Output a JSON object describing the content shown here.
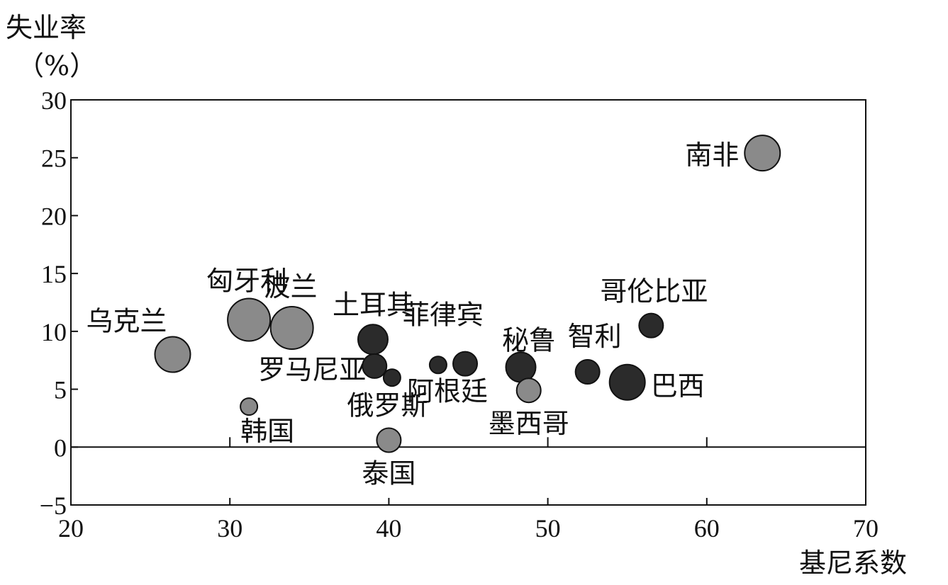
{
  "chart_data": {
    "type": "scatter",
    "ylabel": "失业率",
    "ylabel_unit": "（%）",
    "xlabel": "基尼系数",
    "xlim": [
      20,
      70
    ],
    "ylim": [
      -5,
      30
    ],
    "x_ticks": [
      "20",
      "30",
      "40",
      "50",
      "60",
      "70"
    ],
    "y_ticks": [
      "30",
      "25",
      "20",
      "15",
      "10",
      "5",
      "0",
      "−5"
    ],
    "grid": false,
    "colors": {
      "dark": "#2b2b2b",
      "light": "#8a8a8a",
      "outline": "#111111"
    },
    "points": [
      {
        "label": "南非",
        "x": 63.5,
        "y": 25.4,
        "size": "large",
        "shade": "light"
      },
      {
        "label": "乌克兰",
        "x": 26.4,
        "y": 8.0,
        "size": "large",
        "shade": "light"
      },
      {
        "label": "匈牙利",
        "x": 31.2,
        "y": 11.0,
        "size": "xlarge",
        "shade": "light"
      },
      {
        "label": "波兰",
        "x": 33.9,
        "y": 10.3,
        "size": "xlarge",
        "shade": "light"
      },
      {
        "label": "土耳其",
        "x": 39.0,
        "y": 9.3,
        "size": "medium",
        "shade": "dark"
      },
      {
        "label": "罗马尼亚",
        "x": 39.1,
        "y": 7.0,
        "size": "small",
        "shade": "dark"
      },
      {
        "label": "",
        "x": 40.2,
        "y": 6.0,
        "size": "xsmall",
        "shade": "dark"
      },
      {
        "label": "韩国",
        "x": 31.2,
        "y": 3.5,
        "size": "xsmall",
        "shade": "light"
      },
      {
        "label": "俄罗斯",
        "x": 40.0,
        "y": 0.6,
        "size": "small",
        "shade": "light"
      },
      {
        "label": "泰国",
        "x": 40.0,
        "y": 0.6,
        "size": "",
        "shade": ""
      },
      {
        "label": "菲律宾",
        "x": 43.1,
        "y": 7.1,
        "size": "xsmall",
        "shade": "dark"
      },
      {
        "label": "秘鲁",
        "x": 44.8,
        "y": 7.2,
        "size": "small",
        "shade": "dark"
      },
      {
        "label": "",
        "x": 48.3,
        "y": 6.9,
        "size": "medium",
        "shade": "dark"
      },
      {
        "label": "阿根廷",
        "x": 44.8,
        "y": 7.2,
        "size": "",
        "shade": ""
      },
      {
        "label": "墨西哥",
        "x": 48.8,
        "y": 4.9,
        "size": "small",
        "shade": "light"
      },
      {
        "label": "智利",
        "x": 52.5,
        "y": 6.5,
        "size": "small",
        "shade": "dark"
      },
      {
        "label": "巴西",
        "x": 55.0,
        "y": 5.6,
        "size": "large",
        "shade": "dark"
      },
      {
        "label": "哥伦比亚",
        "x": 56.5,
        "y": 10.5,
        "size": "small",
        "shade": "dark"
      }
    ]
  }
}
